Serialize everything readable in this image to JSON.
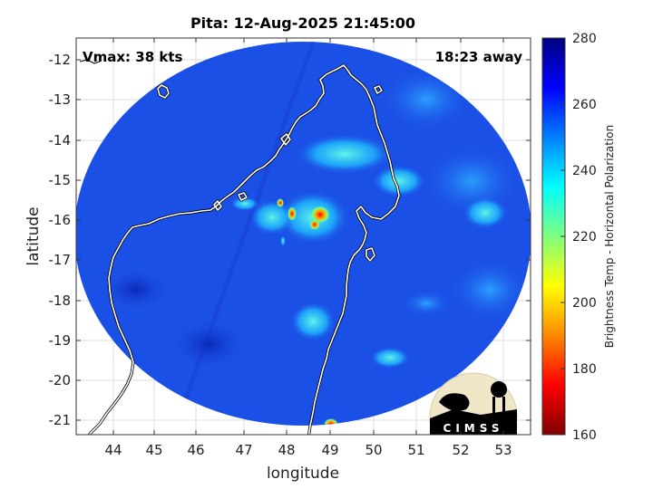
{
  "title": "Pita: 12-Aug-2025 21:45:00",
  "vmax_label": "Vmax: 38 kts",
  "away_label": "18:23 away",
  "xaxis": {
    "label": "longitude",
    "ticks": [
      "44",
      "45",
      "46",
      "47",
      "48",
      "49",
      "50",
      "51",
      "52",
      "53"
    ]
  },
  "yaxis": {
    "label": "latitude",
    "ticks": [
      "-12",
      "-13",
      "-14",
      "-15",
      "-16",
      "-17",
      "-18",
      "-19",
      "-20",
      "-21"
    ]
  },
  "colorbar": {
    "label": "Brightness Temp - Horizontal Polarization",
    "ticks": [
      "280",
      "260",
      "240",
      "220",
      "200",
      "180",
      "160"
    ],
    "range": [
      160,
      280
    ],
    "colors": [
      "#7f0000",
      "#ff0000",
      "#ff8800",
      "#ffff00",
      "#7fff7f",
      "#00ffff",
      "#0080ff",
      "#0000ff",
      "#00007f"
    ]
  },
  "logo": {
    "text": "CIMSS"
  },
  "map": {
    "lon_range": [
      43.3,
      53.6
    ],
    "lat_range": [
      -21.4,
      -11.6
    ],
    "swath_fill": "#1b50e6"
  }
}
